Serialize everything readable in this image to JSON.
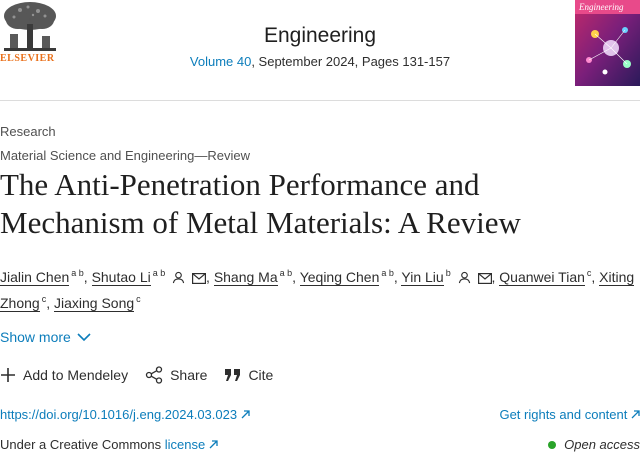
{
  "header": {
    "publisher": "ELSEVIER",
    "journal": "Engineering",
    "volume_link": "Volume 40",
    "issue_info": ", September 2024, Pages 131-157",
    "cover_title": "Engineering"
  },
  "article": {
    "type": "Research",
    "category": "Material Science and Engineering—Review",
    "title_line1": "The Anti-Penetration Performance and",
    "title_line2": "Mechanism of Metal Materials: A Review"
  },
  "authors": [
    {
      "name": "Jialin Chen",
      "aff": "a b",
      "icons": []
    },
    {
      "name": "Shutao Li",
      "aff": "a b",
      "icons": [
        "person-icon",
        "envelope-icon"
      ]
    },
    {
      "name": "Shang Ma",
      "aff": "a b",
      "icons": []
    },
    {
      "name": "Yeqing Chen",
      "aff": "a b",
      "icons": []
    },
    {
      "name": "Yin Liu",
      "aff": "b",
      "icons": [
        "person-icon",
        "envelope-icon"
      ]
    },
    {
      "name": "Quanwei Tian",
      "aff": "c",
      "icons": []
    },
    {
      "name": "Xiting Zhong",
      "aff": "c",
      "icons": []
    },
    {
      "name": "Jiaxing Song",
      "aff": "c",
      "icons": []
    }
  ],
  "show_more": "Show more",
  "actions": {
    "mendeley": "Add to Mendeley",
    "share": "Share",
    "cite": "Cite"
  },
  "links": {
    "doi": "https://doi.org/10.1016/j.eng.2024.03.023",
    "rights": "Get rights and content",
    "license_prefix": "Under a Creative Commons",
    "license_link": "license",
    "open_access": "Open access"
  },
  "colors": {
    "link": "#0c7dbb",
    "brand_orange": "#e9711c",
    "open_access_green": "#29a329"
  }
}
